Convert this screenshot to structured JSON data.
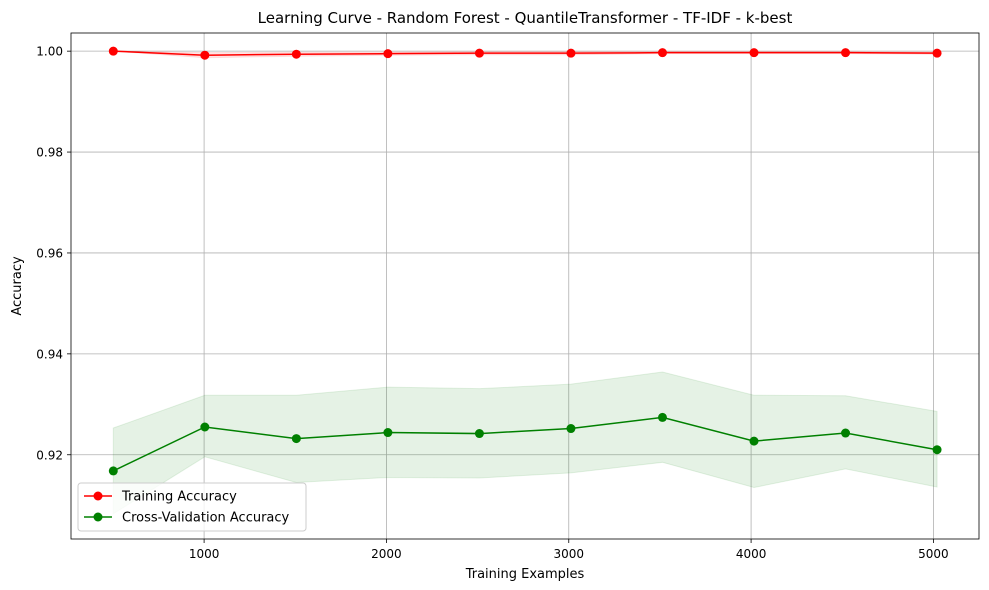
{
  "chart_data": {
    "type": "line",
    "title": "Learning Curve - Random Forest - QuantileTransformer - TF-IDF - k-best",
    "xlabel": "Training Examples",
    "ylabel": "Accuracy",
    "xlim": [
      270,
      5250
    ],
    "ylim": [
      0.9033,
      1.0036
    ],
    "x_ticks": [
      1000,
      2000,
      3000,
      4000,
      5000
    ],
    "y_ticks": [
      0.92,
      0.94,
      0.96,
      0.98,
      1.0
    ],
    "y_tick_labels": [
      "0.92",
      "0.94",
      "0.96",
      "0.98",
      "1.00"
    ],
    "grid": true,
    "legend_position": "lower-left",
    "x": [
      502,
      1004,
      1506,
      2008,
      2510,
      3012,
      3514,
      4016,
      4518,
      5020
    ],
    "series": [
      {
        "name": "Training Accuracy",
        "color": "#ff0000",
        "fill_color": "#ff0000",
        "values": [
          1.0,
          0.9992,
          0.9994,
          0.9995,
          0.9996,
          0.9996,
          0.9997,
          0.9997,
          0.9997,
          0.9996
        ],
        "upper": [
          1.0,
          0.9997,
          0.9998,
          0.9998,
          0.9999,
          0.9999,
          0.9999,
          0.9999,
          0.9999,
          0.9998
        ],
        "lower": [
          1.0,
          0.9987,
          0.999,
          0.9992,
          0.9993,
          0.9993,
          0.9995,
          0.9995,
          0.9995,
          0.9994
        ]
      },
      {
        "name": "Cross-Validation Accuracy",
        "color": "#008000",
        "fill_color": "#008000",
        "values": [
          0.9168,
          0.9255,
          0.9232,
          0.9244,
          0.9242,
          0.9252,
          0.9274,
          0.9227,
          0.9243,
          0.921
        ],
        "upper": [
          0.9253,
          0.9318,
          0.9318,
          0.9334,
          0.9331,
          0.934,
          0.9364,
          0.9318,
          0.9317,
          0.9286
        ],
        "lower": [
          0.9083,
          0.9196,
          0.9145,
          0.9155,
          0.9154,
          0.9164,
          0.9185,
          0.9135,
          0.9172,
          0.9136
        ]
      }
    ]
  }
}
